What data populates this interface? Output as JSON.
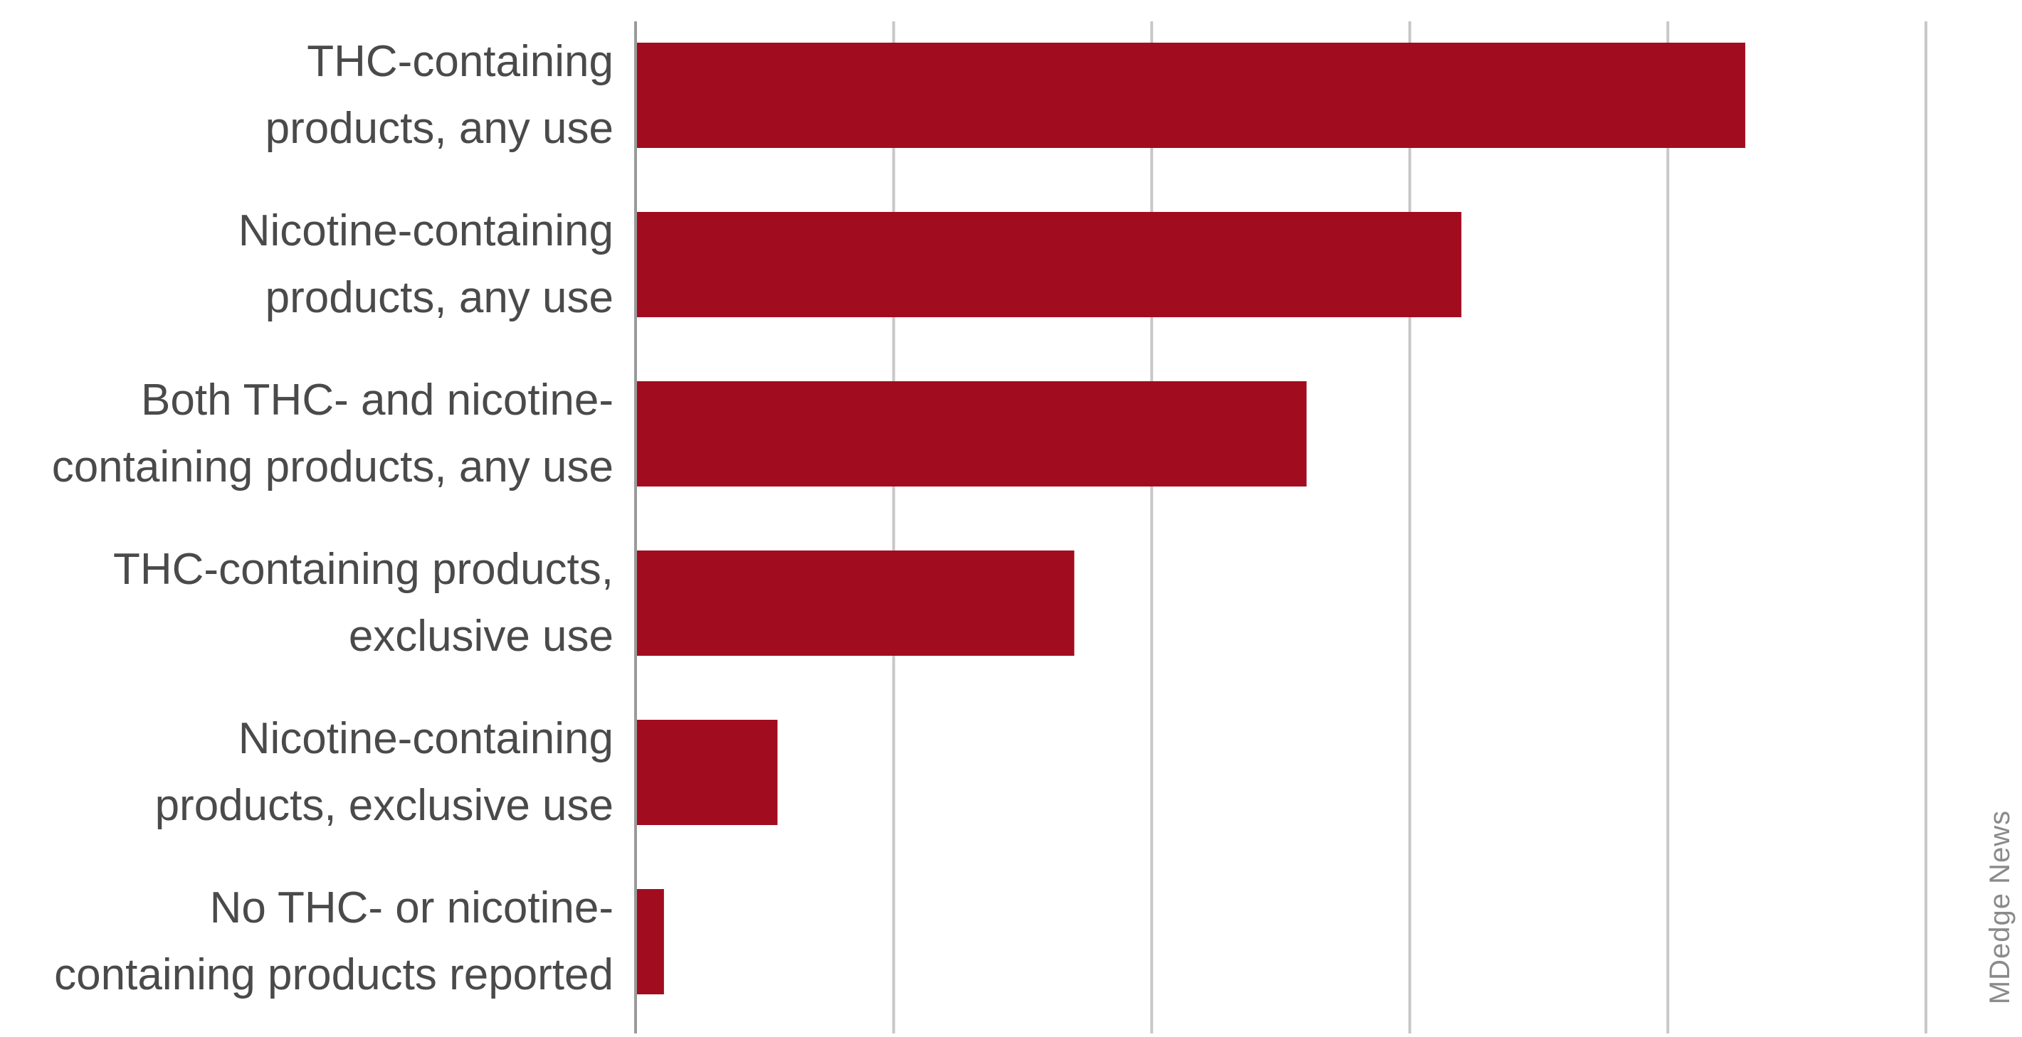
{
  "chart_data": {
    "type": "bar",
    "orientation": "horizontal",
    "categories": [
      [
        "THC-containing",
        "products, any use"
      ],
      [
        "Nicotine-containing",
        "products, any use"
      ],
      [
        "Both THC- and nicotine-",
        "containing products, any use"
      ],
      [
        "THC-containing products,",
        "exclusive use"
      ],
      [
        "Nicotine-containing",
        "products, exclusive use"
      ],
      [
        "No THC- or nicotine-",
        "containing products reported"
      ]
    ],
    "values": [
      43,
      32,
      26,
      17,
      5.5,
      1.1
    ],
    "xlim": [
      0,
      50
    ],
    "gridlines": [
      10,
      20,
      30,
      40,
      50
    ],
    "grid": true,
    "tick_labels_shown": false,
    "bar_color": "#a20c1f",
    "title": "",
    "xlabel": "",
    "ylabel": ""
  },
  "credit": "MDedge News"
}
